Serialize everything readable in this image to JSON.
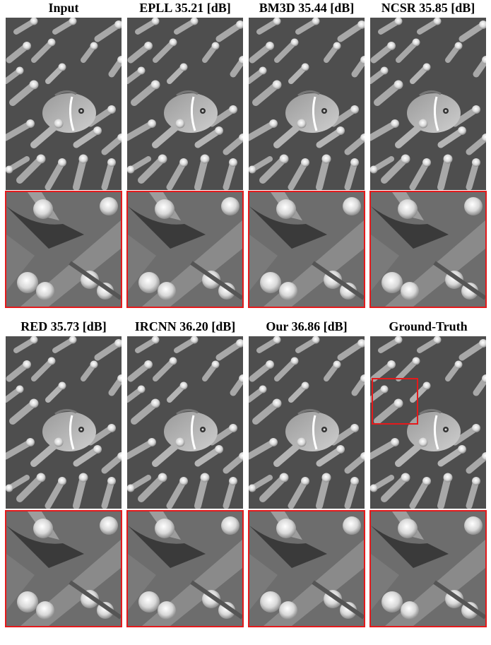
{
  "figure": {
    "row1": [
      {
        "id": "input",
        "title": "Input"
      },
      {
        "id": "epll",
        "title": "EPLL  35.21 [dB]"
      },
      {
        "id": "bm3d",
        "title": "BM3D  35.44 [dB]"
      },
      {
        "id": "ncsr",
        "title": "NCSR  35.85 [dB]"
      }
    ],
    "row2": [
      {
        "id": "red",
        "title": "RED  35.73 [dB]"
      },
      {
        "id": "ircnn",
        "title": "IRCNN  36.20 [dB]"
      },
      {
        "id": "ours",
        "title": "Our  36.86 [dB]"
      },
      {
        "id": "gt",
        "title": "Ground-Truth"
      }
    ]
  },
  "colors": {
    "crop_border": "#e41a1c",
    "background": "#ffffff"
  }
}
